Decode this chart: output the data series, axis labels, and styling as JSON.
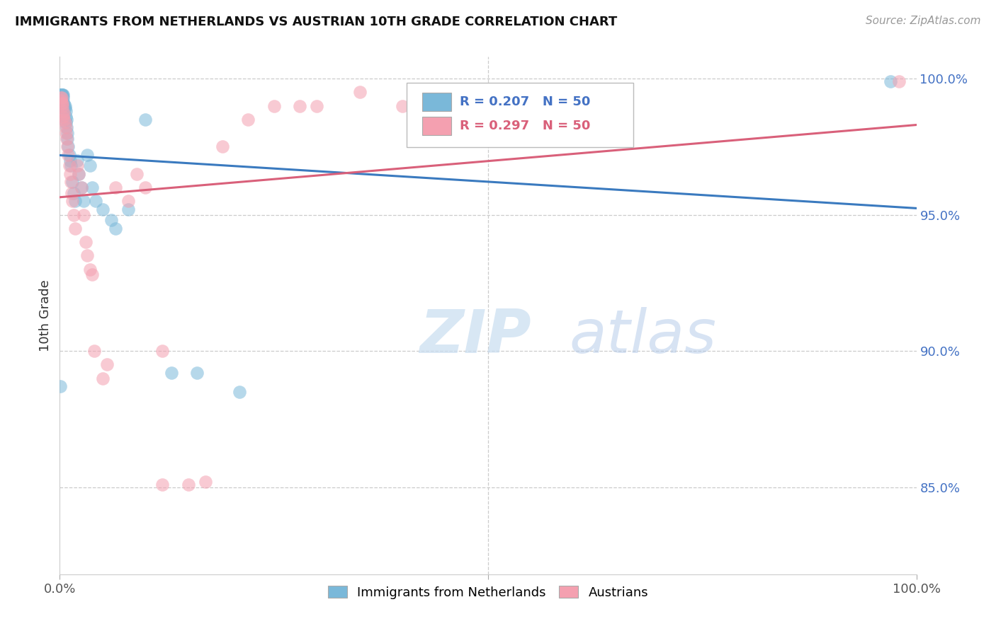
{
  "title": "IMMIGRANTS FROM NETHERLANDS VS AUSTRIAN 10TH GRADE CORRELATION CHART",
  "source": "Source: ZipAtlas.com",
  "ylabel": "10th Grade",
  "yaxis_labels": [
    "100.0%",
    "95.0%",
    "90.0%",
    "85.0%"
  ],
  "yaxis_values": [
    1.0,
    0.95,
    0.9,
    0.85
  ],
  "xmin": 0.0,
  "xmax": 1.0,
  "ymin": 0.818,
  "ymax": 1.008,
  "blue_R": 0.207,
  "pink_R": 0.297,
  "N": 50,
  "blue_color": "#7ab8d9",
  "pink_color": "#f4a0b0",
  "blue_line_color": "#3a7abf",
  "pink_line_color": "#d9607a",
  "legend_label_blue": "Immigrants from Netherlands",
  "legend_label_pink": "Austrians",
  "watermark_zip": "ZIP",
  "watermark_atlas": "atlas",
  "blue_x": [
    0.0008,
    0.001,
    0.001,
    0.0015,
    0.002,
    0.002,
    0.002,
    0.003,
    0.003,
    0.003,
    0.003,
    0.004,
    0.004,
    0.004,
    0.005,
    0.005,
    0.005,
    0.006,
    0.006,
    0.007,
    0.007,
    0.007,
    0.008,
    0.008,
    0.009,
    0.009,
    0.01,
    0.011,
    0.012,
    0.013,
    0.015,
    0.016,
    0.018,
    0.02,
    0.022,
    0.025,
    0.028,
    0.032,
    0.035,
    0.038,
    0.042,
    0.05,
    0.06,
    0.065,
    0.08,
    0.1,
    0.13,
    0.16,
    0.21,
    0.97
  ],
  "blue_y": [
    0.887,
    0.994,
    0.994,
    0.994,
    0.994,
    0.994,
    0.993,
    0.994,
    0.994,
    0.993,
    0.992,
    0.994,
    0.993,
    0.991,
    0.991,
    0.99,
    0.989,
    0.99,
    0.989,
    0.988,
    0.986,
    0.984,
    0.985,
    0.982,
    0.98,
    0.978,
    0.975,
    0.972,
    0.97,
    0.968,
    0.962,
    0.958,
    0.955,
    0.97,
    0.965,
    0.96,
    0.955,
    0.972,
    0.968,
    0.96,
    0.955,
    0.952,
    0.948,
    0.945,
    0.952,
    0.985,
    0.892,
    0.892,
    0.885,
    0.999
  ],
  "pink_x": [
    0.001,
    0.001,
    0.002,
    0.002,
    0.003,
    0.003,
    0.004,
    0.004,
    0.005,
    0.005,
    0.006,
    0.007,
    0.007,
    0.008,
    0.009,
    0.01,
    0.011,
    0.012,
    0.013,
    0.014,
    0.015,
    0.016,
    0.018,
    0.02,
    0.022,
    0.025,
    0.028,
    0.03,
    0.032,
    0.035,
    0.038,
    0.04,
    0.05,
    0.055,
    0.065,
    0.08,
    0.09,
    0.1,
    0.12,
    0.15,
    0.17,
    0.19,
    0.22,
    0.25,
    0.28,
    0.3,
    0.35,
    0.4,
    0.12,
    0.98
  ],
  "pink_y": [
    0.993,
    0.992,
    0.993,
    0.991,
    0.991,
    0.99,
    0.988,
    0.986,
    0.987,
    0.985,
    0.984,
    0.982,
    0.98,
    0.978,
    0.975,
    0.972,
    0.968,
    0.965,
    0.962,
    0.958,
    0.955,
    0.95,
    0.945,
    0.968,
    0.965,
    0.96,
    0.95,
    0.94,
    0.935,
    0.93,
    0.928,
    0.9,
    0.89,
    0.895,
    0.96,
    0.955,
    0.965,
    0.96,
    0.851,
    0.851,
    0.852,
    0.975,
    0.985,
    0.99,
    0.99,
    0.99,
    0.995,
    0.99,
    0.9,
    0.999
  ]
}
